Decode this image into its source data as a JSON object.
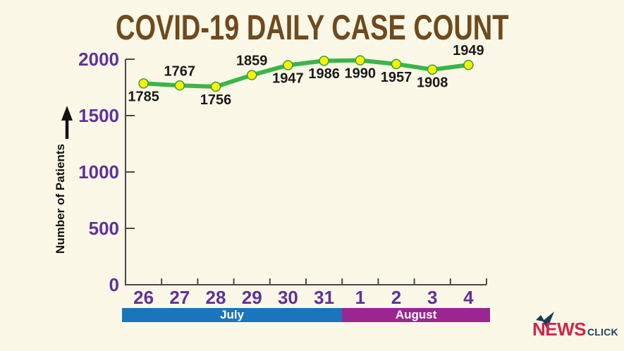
{
  "page": {
    "background": "#FBF8E7"
  },
  "title": {
    "text": "COVID-19 DAILY CASE COUNT",
    "color": "#6F4A1E"
  },
  "icons": {
    "y_axis_arrow": "up-arrow",
    "logo_mark": "checkmark-bird"
  },
  "chart_data": {
    "type": "line",
    "title": "COVID-19 DAILY CASE COUNT",
    "x": [
      "26",
      "27",
      "28",
      "29",
      "30",
      "31",
      "1",
      "2",
      "3",
      "4"
    ],
    "values": [
      1785,
      1767,
      1756,
      1859,
      1947,
      1986,
      1990,
      1957,
      1908,
      1949
    ],
    "point_label_positions": [
      "below",
      "above",
      "below",
      "above",
      "below",
      "below",
      "below",
      "below",
      "below",
      "above"
    ],
    "xlabel": "",
    "ylabel": "Number of Patients",
    "ylim": [
      0,
      2000
    ],
    "yticks": [
      0,
      500,
      1000,
      1500,
      2000
    ],
    "grid": false,
    "legend": "none",
    "x_groups": [
      {
        "label": "July",
        "count": 6,
        "color": "#1B75BC"
      },
      {
        "label": "August",
        "count": 4,
        "color": "#9B2691"
      }
    ],
    "line_color": "#3BB54A",
    "marker_color": "#FFF200",
    "marker_edge_color": "#2FA03C",
    "axis_color": "#4A4A4A",
    "tick_label_color": "#61309B",
    "point_label_color": "#1A1A1A",
    "ylabel_color": "#111111"
  },
  "logo": {
    "news": "NEWS",
    "click": "CLICK",
    "news_color": "#D2254C",
    "click_color": "#1C3F5E",
    "mark_color": "#173B56"
  }
}
